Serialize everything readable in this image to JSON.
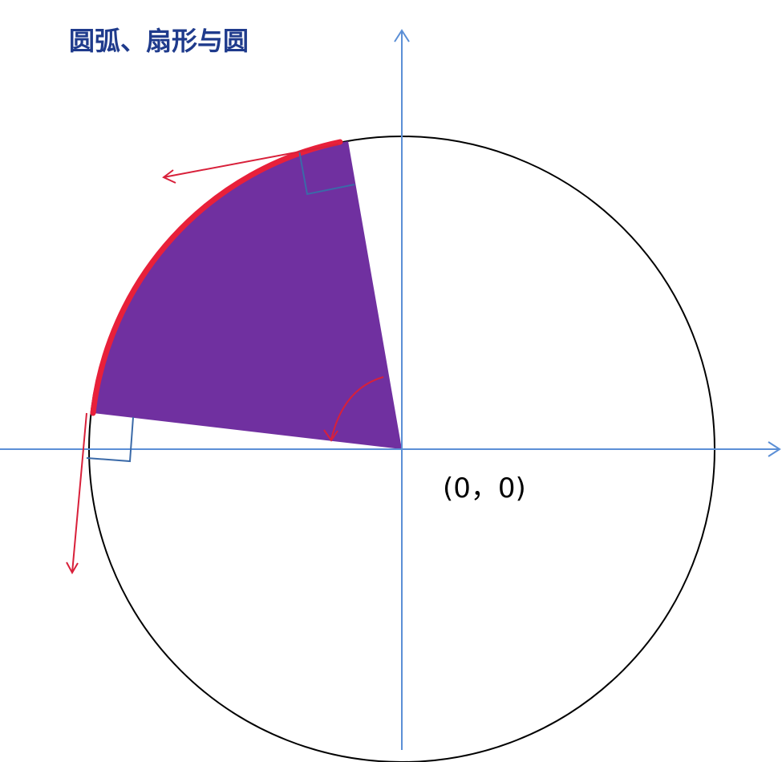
{
  "title": "圆弧、扇形与圆",
  "origin_label": "(0，0)",
  "colors": {
    "title": "#1f3b8c",
    "axis": "#5b8fd6",
    "circle": "#000000",
    "sector_fill": "#7030a0",
    "arc_highlight": "#e8203a",
    "arrow": "#d8203a",
    "right_angle_marker": "#3b6aa8",
    "text": "#000000"
  },
  "elements": {
    "circle": "unit-circle",
    "sector": "filled-sector",
    "arc": "highlighted-arc",
    "tangent_arrows": [
      "tangent-arrow-upper",
      "tangent-arrow-lower"
    ],
    "rotation_arrow": "angle-direction-arrow",
    "right_angle_markers": [
      "right-angle-marker-upper",
      "right-angle-marker-lower"
    ]
  }
}
